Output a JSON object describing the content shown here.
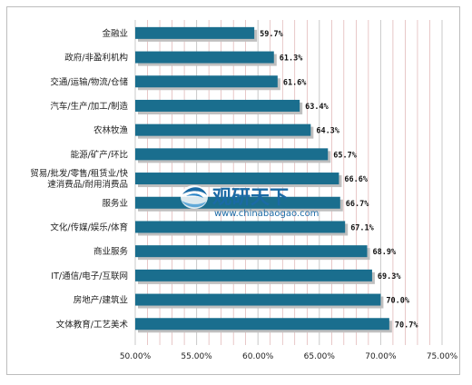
{
  "chart_data": {
    "type": "bar",
    "orientation": "horizontal",
    "categories": [
      "金融业",
      "政府/非盈利机构",
      "交通/运输/物流/仓储",
      "汽车/生产/加工/制造",
      "农林牧渔",
      "能源/矿产/环比",
      "贸易/批发/零售/租赁业/快速消费品/耐用消费品",
      "服务业",
      "文化/传媒/娱乐/体育",
      "商业服务",
      "IT/通信/电子/互联网",
      "房地产/建筑业",
      "文体教育/工艺美术"
    ],
    "values": [
      59.7,
      61.3,
      61.6,
      63.4,
      64.3,
      65.7,
      66.6,
      66.7,
      67.1,
      68.9,
      69.3,
      70.0,
      70.7
    ],
    "value_labels": [
      "59.7%",
      "61.3%",
      "61.6%",
      "63.4%",
      "64.3%",
      "65.7%",
      "66.6%",
      "66.7%",
      "67.1%",
      "68.9%",
      "69.3%",
      "70.0%",
      "70.7%"
    ],
    "xlim": [
      50,
      75
    ],
    "x_ticks": [
      50,
      55,
      60,
      65,
      70,
      75
    ],
    "x_tick_labels": [
      "50.00%",
      "55.00%",
      "60.00%",
      "65.00%",
      "70.00%",
      "75.00%"
    ],
    "grid": "vertical",
    "bar_color": "#1a6e8e",
    "bar_shadow_color": "#bfbfbf",
    "grid_color": "#d9a3a3",
    "title": "",
    "xlabel": "",
    "ylabel": ""
  },
  "watermark": {
    "name": "观研天下",
    "url": "www.chinabaogao.com",
    "color": "#1b6aa5"
  }
}
